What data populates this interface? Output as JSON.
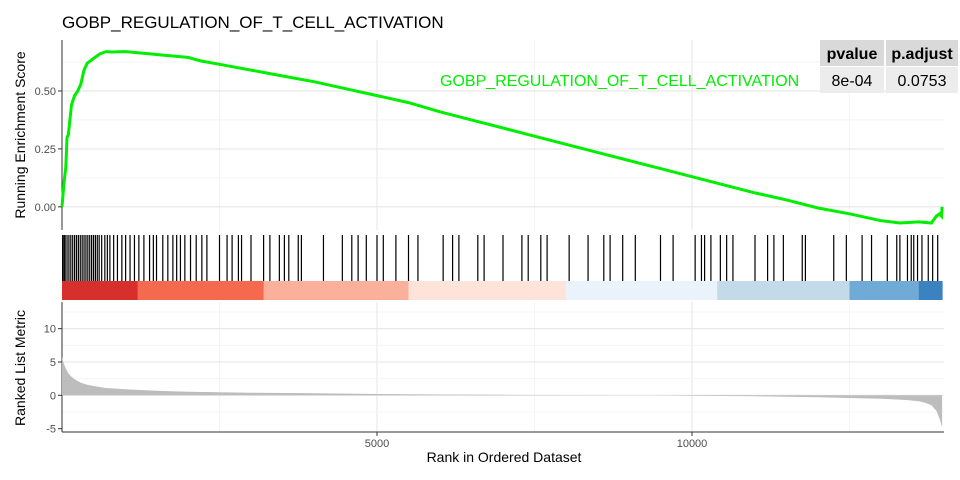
{
  "chart_data": {
    "type": "line",
    "title": "GOBP_REGULATION_OF_T_CELL_ACTIVATION",
    "xlabel": "Rank in Ordered Dataset",
    "xlim": [
      0,
      14000
    ],
    "x_ticks": [
      5000,
      10000
    ],
    "x_tick_labels": [
      "5000",
      "10000"
    ],
    "es_panel": {
      "ylabel": "Running Enrichment Score",
      "ylim": [
        -0.1,
        0.72
      ],
      "y_ticks": [
        0,
        0.25,
        0.5
      ],
      "y_tick_labels": [
        "0.00",
        "0.25",
        "0.50"
      ],
      "series": [
        {
          "color": "#00ee00",
          "x": [
            0,
            30,
            60,
            80,
            100,
            150,
            200,
            250,
            300,
            350,
            400,
            450,
            500,
            600,
            700,
            800,
            900,
            1000,
            1200,
            1400,
            1600,
            1800,
            2000,
            2200,
            2500,
            2800,
            3000,
            3300,
            3600,
            4000,
            4500,
            5000,
            5500,
            6000,
            6500,
            7000,
            7500,
            8000,
            8500,
            9000,
            9500,
            10000,
            10500,
            11000,
            11500,
            12000,
            12500,
            13000,
            13300,
            13600,
            13800,
            13880,
            13930,
            13960,
            13970
          ],
          "y": [
            0.0,
            0.1,
            0.17,
            0.3,
            0.31,
            0.44,
            0.48,
            0.5,
            0.53,
            0.59,
            0.62,
            0.63,
            0.64,
            0.66,
            0.67,
            0.668,
            0.669,
            0.67,
            0.665,
            0.66,
            0.655,
            0.65,
            0.645,
            0.63,
            0.615,
            0.6,
            0.59,
            0.575,
            0.56,
            0.54,
            0.51,
            0.48,
            0.45,
            0.41,
            0.375,
            0.34,
            0.305,
            0.27,
            0.235,
            0.2,
            0.165,
            0.13,
            0.095,
            0.06,
            0.03,
            -0.005,
            -0.03,
            -0.06,
            -0.07,
            -0.065,
            -0.07,
            -0.04,
            -0.03,
            -0.04,
            0.0
          ]
        }
      ],
      "annotation": "GOBP_REGULATION_OF_T_CELL_ACTIVATION",
      "table": {
        "headers": [
          "pvalue",
          "p.adjust"
        ],
        "values": [
          "8e-04",
          "0.0753"
        ]
      }
    },
    "hits": [
      10,
      30,
      50,
      80,
      110,
      140,
      170,
      200,
      230,
      260,
      290,
      320,
      350,
      380,
      410,
      440,
      470,
      500,
      530,
      560,
      590,
      630,
      680,
      720,
      760,
      820,
      880,
      950,
      1010,
      1080,
      1150,
      1220,
      1300,
      1390,
      1450,
      1500,
      1600,
      1680,
      1760,
      1820,
      1880,
      1950,
      2040,
      2130,
      2220,
      2300,
      2500,
      2620,
      2700,
      2800,
      2850,
      3000,
      3200,
      3300,
      3450,
      3530,
      3600,
      3750,
      3800,
      4150,
      4450,
      4600,
      4700,
      4830,
      5000,
      5100,
      5300,
      5500,
      5650,
      6050,
      6200,
      6300,
      6600,
      6700,
      7000,
      7300,
      7400,
      7600,
      7700,
      8050,
      8350,
      8600,
      8700,
      8900,
      9100,
      9500,
      9700,
      10050,
      10150,
      10200,
      10300,
      10450,
      10550,
      10650,
      11000,
      11200,
      11300,
      11450,
      11750,
      11800,
      12250,
      12450,
      12700,
      12850,
      13100,
      13250,
      13300,
      13420,
      13480,
      13520,
      13580,
      13650,
      13750,
      13820,
      13900
    ],
    "rank_heat": [
      {
        "from": 0,
        "to": 1200,
        "color": "#d7302c"
      },
      {
        "from": 1200,
        "to": 3200,
        "color": "#f5694f"
      },
      {
        "from": 3200,
        "to": 5500,
        "color": "#fbb09b"
      },
      {
        "from": 5500,
        "to": 8000,
        "color": "#fde3da"
      },
      {
        "from": 8000,
        "to": 10400,
        "color": "#eaf2fb"
      },
      {
        "from": 10400,
        "to": 12500,
        "color": "#c3dbe9"
      },
      {
        "from": 12500,
        "to": 13600,
        "color": "#6fabd6"
      },
      {
        "from": 13600,
        "to": 13970,
        "color": "#3a83c0"
      }
    ],
    "metric_panel": {
      "ylabel": "Ranked List Metric",
      "ylim": [
        -5.5,
        14
      ],
      "y_ticks": [
        -5,
        0,
        5,
        10
      ],
      "y_tick_labels": [
        "-5",
        "0",
        "5",
        "10"
      ],
      "x": [
        0,
        20,
        50,
        100,
        150,
        200,
        300,
        400,
        500,
        700,
        1000,
        1500,
        2000,
        3000,
        4000,
        5000,
        6000,
        7000,
        8000,
        8800,
        9000,
        9500,
        9600,
        10000,
        11000,
        12000,
        13000,
        13400,
        13600,
        13700,
        13800,
        13880,
        13930,
        13970
      ],
      "y": [
        5.8,
        5.0,
        4.2,
        3.3,
        2.8,
        2.4,
        1.9,
        1.6,
        1.4,
        1.1,
        0.9,
        0.7,
        0.55,
        0.4,
        0.3,
        0.2,
        0.12,
        0.08,
        0.03,
        0.01,
        0.0,
        0.0,
        -0.01,
        -0.05,
        -0.15,
        -0.3,
        -0.5,
        -0.7,
        -0.9,
        -1.1,
        -1.5,
        -2.3,
        -3.5,
        -4.8
      ]
    }
  }
}
